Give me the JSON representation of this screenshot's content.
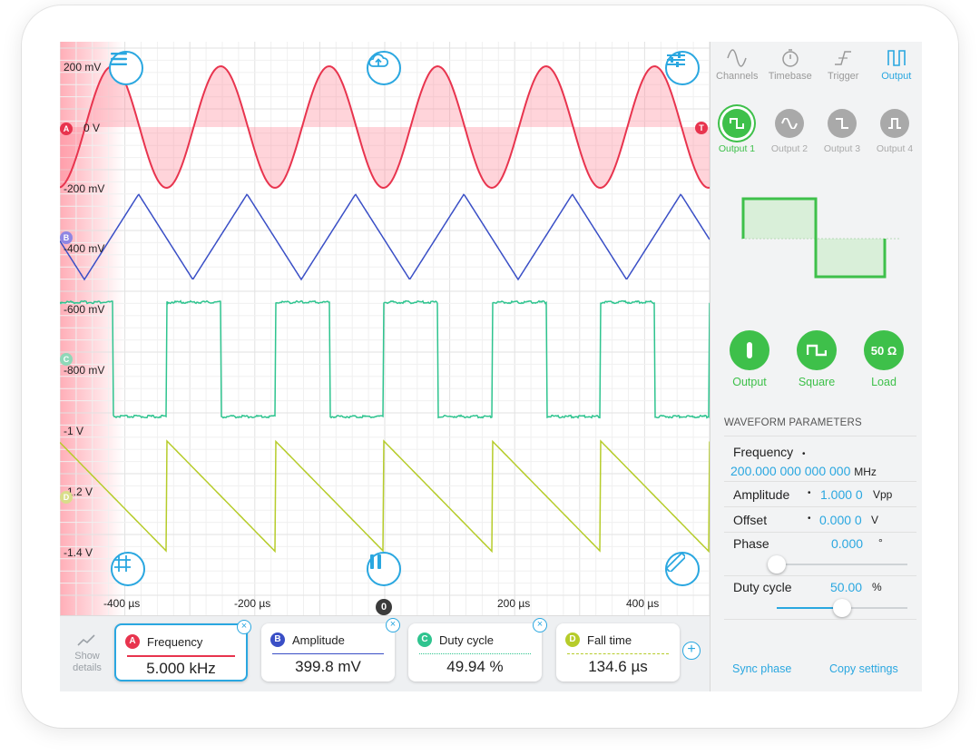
{
  "scope": {
    "y_labels": [
      "200 mV",
      "0 V",
      "-200 mV",
      "-400 mV",
      "-600 mV",
      "-800 mV",
      "-1 V",
      "-1.2 V",
      "-1.4 V"
    ],
    "x_labels": [
      "-400 µs",
      "-200 µs",
      "200 µs",
      "400 µs"
    ],
    "zero_label": "0",
    "markers": {
      "a": "A",
      "b": "B",
      "c": "C",
      "d": "D",
      "t": "T"
    },
    "colors": {
      "a": "#e8344e",
      "b": "#3a4fc6",
      "c": "#2fc48f",
      "d": "#b6cc2a",
      "accent": "#2aa7e0"
    }
  },
  "measurements": {
    "show_details": "Show details",
    "cards": [
      {
        "ch": "A",
        "name": "Frequency",
        "value": "5.000 kHz"
      },
      {
        "ch": "B",
        "name": "Amplitude",
        "value": "399.8 mV"
      },
      {
        "ch": "C",
        "name": "Duty cycle",
        "value": "49.94 %"
      },
      {
        "ch": "D",
        "name": "Fall time",
        "value": "134.6 µs"
      }
    ]
  },
  "panel": {
    "tabs": [
      "Channels",
      "Timebase",
      "Trigger",
      "Output"
    ],
    "outputs": [
      "Output 1",
      "Output 2",
      "Output 3",
      "Output 4"
    ],
    "controls": [
      {
        "label": "Output",
        "icon": "power-bar-icon"
      },
      {
        "label": "Square",
        "icon": "square-wave-icon"
      },
      {
        "label": "Load",
        "text": "50 Ω"
      }
    ],
    "section_title": "WAVEFORM PARAMETERS",
    "frequency": {
      "label": "Frequency",
      "value": "200.000 000 000 000",
      "unit": "MHz"
    },
    "amplitude": {
      "label": "Amplitude",
      "value": "1.000 0",
      "unit": "Vpp"
    },
    "offset": {
      "label": "Offset",
      "value": "0.000 0",
      "unit": "V"
    },
    "phase": {
      "label": "Phase",
      "value": "0.000",
      "unit": "°",
      "slider": 0.0
    },
    "duty": {
      "label": "Duty cycle",
      "value": "50.00",
      "unit": "%",
      "slider": 0.5
    },
    "bullet": "•",
    "sync_phase": "Sync phase",
    "copy_settings": "Copy settings"
  }
}
